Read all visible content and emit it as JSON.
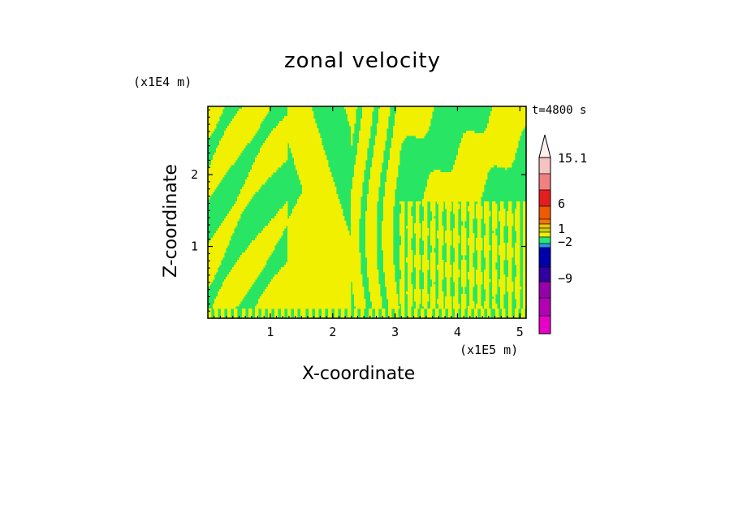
{
  "chart_data": {
    "type": "heatmap",
    "title": "zonal velocity",
    "xlabel": "X-coordinate",
    "ylabel": "Z-coordinate",
    "x_unit": "(x1E5 m)",
    "y_unit": "(x1E4 m)",
    "time_label": "t=4800 s",
    "xlim": [
      0,
      5.1
    ],
    "ylim": [
      0,
      2.95
    ],
    "x_ticks": [
      "1",
      "2",
      "3",
      "4",
      "5"
    ],
    "y_ticks": [
      "1",
      "2"
    ],
    "colorbar": {
      "labels": [
        "15.1",
        "6",
        "1",
        "−2",
        "−9"
      ],
      "colors": [
        "#f6c3c3",
        "#f18080",
        "#e41e1e",
        "#f05a00",
        "#f07800",
        "#f0c800",
        "#c8d200",
        "#f0f000",
        "#28e678",
        "#2896f0",
        "#0000aa",
        "#3200a0",
        "#9600aa",
        "#b400b4",
        "#e600c8"
      ],
      "extend": "max"
    },
    "colors": {
      "green": "#28e664",
      "yellow": "#f0f000"
    }
  }
}
